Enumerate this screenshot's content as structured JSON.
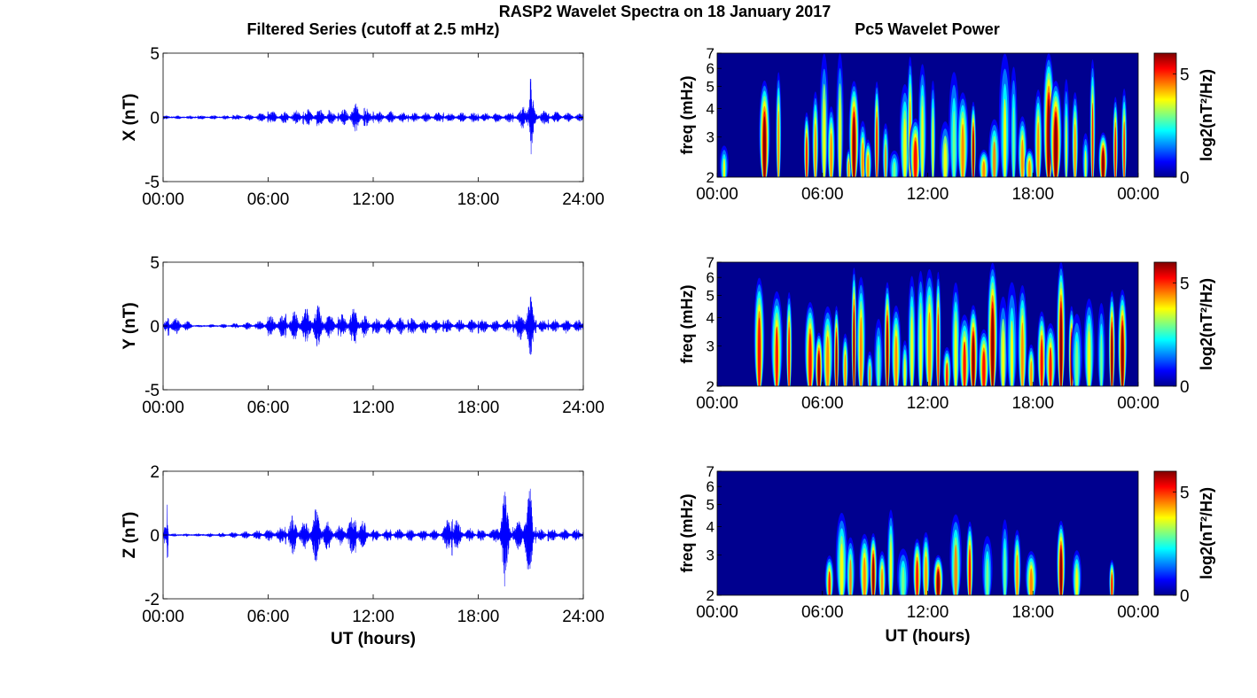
{
  "figure": {
    "title": "RASP2 Wavelet Spectra on 18 January 2017",
    "left_title": "Filtered Series (cutoff at 2.5 mHz)",
    "right_title": "Pc5 Wavelet Power"
  },
  "colors": {
    "trace": "#0000ff",
    "axes": "#000000",
    "colormap": "jet",
    "colormap_stops": [
      "#00008f",
      "#0000ff",
      "#0080ff",
      "#00ffff",
      "#80ff80",
      "#ffff00",
      "#ff8000",
      "#ff0000",
      "#800000"
    ]
  },
  "chart_data": [
    {
      "type": "line",
      "panel": "X filtered series",
      "ylabel": "X (nT)",
      "xlabel": "",
      "xlim": [
        0,
        24
      ],
      "ylim": [
        -5,
        5
      ],
      "x_ticks": [
        "00:00",
        "06:00",
        "12:00",
        "18:00",
        "24:00"
      ],
      "y_ticks": [
        "-5",
        "0",
        "5"
      ],
      "grid": false,
      "series": [
        {
          "envelope_x_hours": [
            0,
            2,
            4,
            5.5,
            6,
            7,
            8,
            8.8,
            9.5,
            10,
            11,
            11.5,
            12,
            13,
            14,
            15,
            16,
            17,
            18,
            19,
            20,
            20.4,
            21,
            21.2,
            22,
            23,
            24
          ],
          "envelope_amp_nT": [
            0.15,
            0.15,
            0.2,
            0.3,
            0.5,
            0.5,
            0.6,
            0.7,
            0.6,
            0.4,
            1.2,
            0.8,
            0.5,
            0.5,
            0.4,
            0.4,
            0.4,
            0.4,
            0.4,
            0.4,
            0.4,
            0.5,
            3.2,
            0.7,
            0.5,
            0.4,
            0.3
          ]
        }
      ]
    },
    {
      "type": "line",
      "panel": "Y filtered series",
      "ylabel": "Y (nT)",
      "xlabel": "",
      "xlim": [
        0,
        24
      ],
      "ylim": [
        -5,
        5
      ],
      "x_ticks": [
        "00:00",
        "06:00",
        "12:00",
        "18:00",
        "24:00"
      ],
      "y_ticks": [
        "-5",
        "0",
        "5"
      ],
      "grid": false,
      "series": [
        {
          "envelope_x_hours": [
            0,
            0.3,
            2,
            4,
            5.5,
            6,
            7,
            8,
            8.8,
            9.5,
            10,
            11,
            11.5,
            12,
            13,
            14,
            15,
            16,
            17,
            18,
            19,
            20,
            21,
            21.3,
            22,
            23,
            24
          ],
          "envelope_amp_nT": [
            0.1,
            0.9,
            0.1,
            0.2,
            0.4,
            0.8,
            1.0,
            1.3,
            1.8,
            1.0,
            0.8,
            1.6,
            0.9,
            0.6,
            0.7,
            0.7,
            0.6,
            0.6,
            0.5,
            0.6,
            0.5,
            0.5,
            2.5,
            0.6,
            0.5,
            0.6,
            0.5
          ]
        }
      ]
    },
    {
      "type": "line",
      "panel": "Z filtered series",
      "ylabel": "Z (nT)",
      "xlabel": "UT (hours)",
      "xlim": [
        0,
        24
      ],
      "ylim": [
        -2,
        2
      ],
      "x_ticks": [
        "00:00",
        "06:00",
        "12:00",
        "18:00",
        "24:00"
      ],
      "y_ticks": [
        "-2",
        "0",
        "2"
      ],
      "grid": false,
      "series": [
        {
          "envelope_x_hours": [
            0,
            0.25,
            0.3,
            2,
            4,
            5.5,
            6,
            7,
            7.4,
            8,
            8.7,
            9.5,
            10,
            11,
            11.5,
            12,
            13,
            14,
            15,
            16,
            16.5,
            17,
            18,
            19,
            19.5,
            20,
            21,
            21.3,
            22,
            23,
            24
          ],
          "envelope_amp_nT": [
            0.02,
            1.1,
            0.05,
            0.05,
            0.1,
            0.15,
            0.2,
            0.3,
            0.7,
            0.4,
            0.9,
            0.4,
            0.3,
            0.7,
            0.4,
            0.2,
            0.2,
            0.2,
            0.2,
            0.2,
            0.9,
            0.25,
            0.2,
            0.2,
            1.7,
            0.2,
            1.5,
            0.2,
            0.2,
            0.2,
            0.2
          ]
        }
      ]
    },
    {
      "type": "heatmap",
      "panel": "X wavelet power",
      "ylabel": "freq (mHz)",
      "xlabel": "",
      "xlim": [
        0,
        24
      ],
      "ylim": [
        2,
        7
      ],
      "log_y": true,
      "x_ticks": [
        "00:00",
        "06:00",
        "12:00",
        "18:00",
        "00:00"
      ],
      "y_ticks": [
        "2",
        "3",
        "4",
        "5",
        "6",
        "7"
      ],
      "colorbar": {
        "label": "log2(nT²/Hz)",
        "range": [
          0,
          6
        ],
        "ticks": [
          "0",
          "5"
        ]
      },
      "hotspots_time_hours": [
        0.4,
        2.7,
        3.5,
        5.1,
        5.6,
        6.1,
        6.5,
        7.0,
        7.5,
        7.8,
        8.3,
        8.6,
        9.1,
        9.6,
        10.1,
        10.7,
        11.0,
        11.3,
        11.7,
        12.3,
        13.0,
        13.5,
        14.0,
        14.6,
        15.2,
        15.8,
        16.4,
        16.9,
        17.4,
        17.8,
        18.3,
        18.9,
        19.3,
        19.9,
        20.4,
        21.0,
        21.4,
        22.0,
        22.7,
        23.2
      ]
    },
    {
      "type": "heatmap",
      "panel": "Y wavelet power",
      "ylabel": "freq (mHz)",
      "xlabel": "",
      "xlim": [
        0,
        24
      ],
      "ylim": [
        2,
        7
      ],
      "log_y": true,
      "x_ticks": [
        "00:00",
        "06:00",
        "12:00",
        "18:00",
        "00:00"
      ],
      "y_ticks": [
        "2",
        "3",
        "4",
        "5",
        "6",
        "7"
      ],
      "colorbar": {
        "label": "log2(nT²/Hz)",
        "range": [
          0,
          6
        ],
        "ticks": [
          "0",
          "5"
        ]
      },
      "hotspots_time_hours": [
        2.4,
        3.4,
        4.1,
        5.3,
        5.8,
        6.3,
        6.8,
        7.3,
        7.8,
        8.2,
        8.7,
        9.2,
        9.7,
        10.2,
        10.7,
        11.1,
        11.6,
        12.1,
        12.6,
        13.1,
        13.6,
        14.1,
        14.6,
        15.2,
        15.7,
        16.3,
        16.8,
        17.4,
        17.9,
        18.5,
        19.0,
        19.6,
        20.2,
        20.5,
        21.2,
        21.9,
        22.5,
        23.1
      ]
    },
    {
      "type": "heatmap",
      "panel": "Z wavelet power",
      "ylabel": "freq (mHz)",
      "xlabel": "UT (hours)",
      "xlim": [
        0,
        24
      ],
      "ylim": [
        2,
        7
      ],
      "log_y": true,
      "x_ticks": [
        "00:00",
        "06:00",
        "12:00",
        "18:00",
        "00:00"
      ],
      "y_ticks": [
        "2",
        "3",
        "4",
        "5",
        "6",
        "7"
      ],
      "colorbar": {
        "label": "log2(nT²/Hz)",
        "range": [
          0,
          6
        ],
        "ticks": [
          "0",
          "5"
        ]
      },
      "hotspots_time_hours": [
        6.4,
        7.1,
        7.6,
        8.4,
        8.9,
        9.4,
        9.9,
        10.6,
        11.4,
        11.9,
        12.6,
        13.6,
        14.4,
        15.4,
        16.4,
        17.1,
        17.9,
        19.6,
        20.5,
        22.5
      ]
    }
  ]
}
